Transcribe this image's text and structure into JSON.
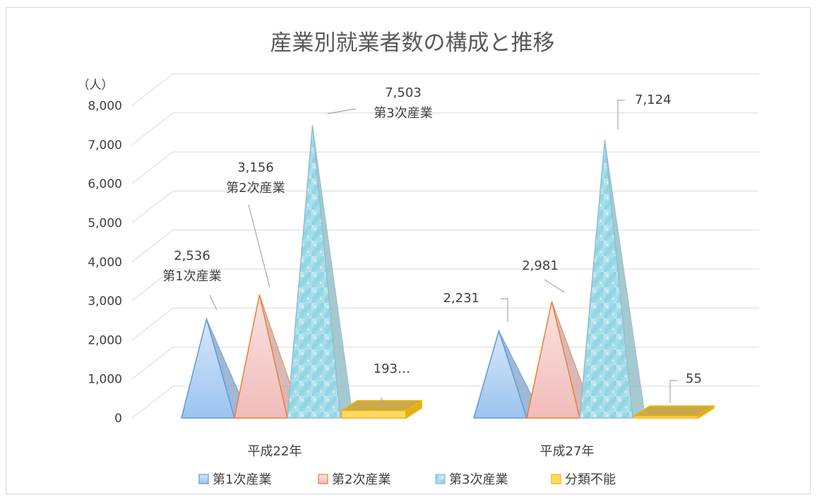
{
  "chart_data": {
    "type": "bar",
    "title": "産業別就業者数の構成と推移",
    "ylabel": "（人）",
    "xlabel": "",
    "ylim": [
      0,
      8000
    ],
    "yticks": [
      "0",
      "1,000",
      "2,000",
      "3,000",
      "4,000",
      "5,000",
      "6,000",
      "7,000",
      "8,000"
    ],
    "ytick_values": [
      0,
      1000,
      2000,
      3000,
      4000,
      5000,
      6000,
      7000,
      8000
    ],
    "categories": [
      "平成22年",
      "平成27年"
    ],
    "grid": true,
    "legend_position": "bottom",
    "series": [
      {
        "name": "第1次産業",
        "shape": "pyramid",
        "color": "#9cc3ef",
        "stroke": "#5b9bd5",
        "values": [
          2536,
          2231
        ],
        "data_labels": [
          [
            "2,536",
            "第1次産業"
          ],
          [
            "2,231"
          ]
        ]
      },
      {
        "name": "第2次産業",
        "shape": "pyramid",
        "color": "#f3c4c2",
        "stroke": "#ed7d31",
        "values": [
          3156,
          2981
        ],
        "data_labels": [
          [
            "3,156",
            "第2次産業"
          ],
          [
            "2,981"
          ]
        ]
      },
      {
        "name": "第3次産業",
        "shape": "pyramid",
        "color": "#a8dde8",
        "stroke": "#8fbfcf",
        "values": [
          7503,
          7124
        ],
        "data_labels": [
          [
            "7,503",
            "第3次産業"
          ],
          [
            "7,124"
          ]
        ]
      },
      {
        "name": "分類不能",
        "shape": "box",
        "color": "#ffd966",
        "stroke": "#f2b400",
        "values": [
          193,
          55
        ],
        "data_labels": [
          [
            "193…"
          ],
          [
            "55"
          ]
        ]
      }
    ]
  }
}
